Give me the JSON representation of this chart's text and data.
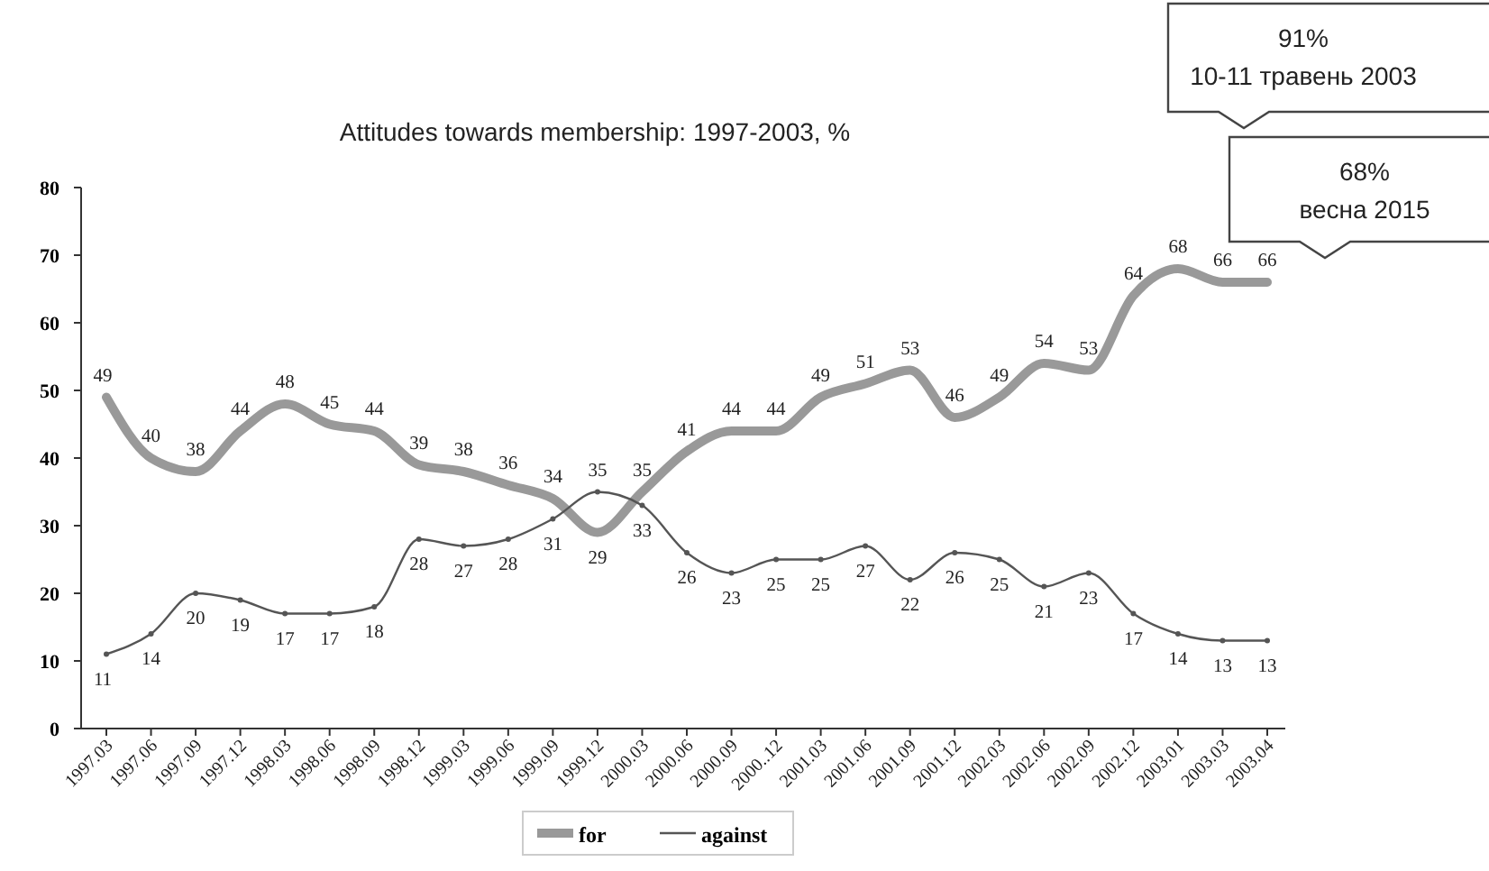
{
  "chart_data": {
    "type": "line",
    "title": "Attitudes towards membership: 1997-2003, %",
    "categories": [
      "1997.03",
      "1997.06",
      "1997.09",
      "1997.12",
      "1998.03",
      "1998.06",
      "1998.09",
      "1998.12",
      "1999.03",
      "1999.06",
      "1999.09",
      "1999.12",
      "2000.03",
      "2000.06",
      "2000.09",
      "2000..12",
      "2001.03",
      "2001.06",
      "2001.09",
      "2001.12",
      "2002.03",
      "2002.06",
      "2002.09",
      "2002.12",
      "2003.01",
      "2003.03",
      "2003.04"
    ],
    "series": [
      {
        "name": "for",
        "color": "#999999",
        "marker": "none",
        "values": [
          49,
          40,
          38,
          44,
          48,
          45,
          44,
          39,
          38,
          36,
          34,
          29,
          35,
          41,
          44,
          44,
          49,
          51,
          53,
          46,
          49,
          54,
          53,
          64,
          68,
          66,
          66
        ]
      },
      {
        "name": "against",
        "color": "#555555",
        "marker": "circle",
        "values": [
          11,
          14,
          20,
          19,
          17,
          17,
          18,
          28,
          27,
          28,
          31,
          35,
          33,
          26,
          23,
          25,
          25,
          27,
          22,
          26,
          25,
          21,
          23,
          17,
          14,
          13,
          13
        ]
      }
    ],
    "ylim": [
      0,
      80
    ],
    "yticks": [
      0,
      10,
      20,
      30,
      40,
      50,
      60,
      70,
      80
    ],
    "grid": false,
    "legend": "bottom",
    "data_labels": true,
    "line_style": "solid",
    "annotations": [
      "91%\n10-11 травень 2003",
      "68%\nвесна 2015"
    ]
  }
}
